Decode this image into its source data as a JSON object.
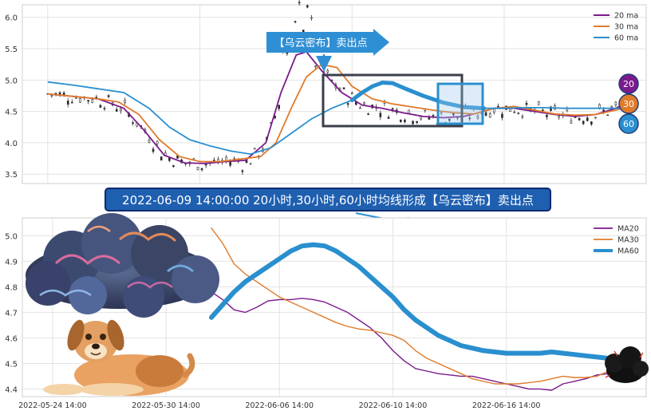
{
  "banner": {
    "text": "2022-06-09 14:00:00 20小时,30小时,60小时均线形成【乌云密布】卖出点",
    "bg_color": "#1f5fb0",
    "border_color": "#0a2a6e"
  },
  "callout": {
    "text": "【乌云密布】卖出点",
    "color": "#2f8fd4"
  },
  "badges": [
    {
      "label": "20",
      "color": "#7b1a8c"
    },
    {
      "label": "30",
      "color": "#e07b2a"
    },
    {
      "label": "60",
      "color": "#2a8fcf"
    }
  ],
  "illustrations": {
    "cloud": "storm-cloud-illustration",
    "dog": "dog-illustration",
    "small_cloud": "dark-cloud-icon"
  },
  "chart_data": [
    {
      "type": "candlestick",
      "legend_position": "top-right",
      "grid": true,
      "ylim": [
        3.35,
        6.2
      ],
      "yticks": [
        "3.5",
        "4.0",
        "4.5",
        "5.0",
        "5.5",
        "6.0"
      ],
      "ytick_values": [
        3.5,
        4.0,
        4.5,
        5.0,
        5.5,
        6.0
      ],
      "series": [
        {
          "name": "20 ma",
          "color": "#7b1a8c",
          "points": [
            [
              0,
              4.78
            ],
            [
              5,
              4.74
            ],
            [
              10,
              4.7
            ],
            [
              15,
              4.55
            ],
            [
              19,
              4.2
            ],
            [
              23,
              3.8
            ],
            [
              27,
              3.68
            ],
            [
              31,
              3.67
            ],
            [
              35,
              3.7
            ],
            [
              39,
              3.72
            ],
            [
              43,
              4.0
            ],
            [
              46,
              4.8
            ],
            [
              49,
              5.4
            ],
            [
              51,
              5.45
            ],
            [
              54,
              5.15
            ],
            [
              58,
              4.8
            ],
            [
              62,
              4.6
            ],
            [
              66,
              4.55
            ],
            [
              70,
              4.48
            ],
            [
              74,
              4.42
            ],
            [
              78,
              4.4
            ],
            [
              82,
              4.42
            ],
            [
              85,
              4.48
            ],
            [
              88,
              4.55
            ],
            [
              92,
              4.55
            ],
            [
              96,
              4.5
            ],
            [
              100,
              4.45
            ],
            [
              104,
              4.42
            ],
            [
              108,
              4.45
            ],
            [
              112,
              4.55
            ],
            [
              115,
              4.68
            ]
          ]
        },
        {
          "name": "30 ma",
          "color": "#e07b2a",
          "points": [
            [
              0,
              4.78
            ],
            [
              5,
              4.74
            ],
            [
              10,
              4.7
            ],
            [
              14,
              4.65
            ],
            [
              18,
              4.45
            ],
            [
              22,
              4.05
            ],
            [
              26,
              3.78
            ],
            [
              30,
              3.7
            ],
            [
              34,
              3.7
            ],
            [
              38,
              3.74
            ],
            [
              42,
              3.78
            ],
            [
              45,
              4.0
            ],
            [
              48,
              4.55
            ],
            [
              51,
              5.05
            ],
            [
              54,
              5.25
            ],
            [
              57,
              5.2
            ],
            [
              60,
              4.9
            ],
            [
              64,
              4.7
            ],
            [
              68,
              4.62
            ],
            [
              72,
              4.57
            ],
            [
              76,
              4.52
            ],
            [
              80,
              4.48
            ],
            [
              84,
              4.46
            ],
            [
              88,
              4.55
            ],
            [
              92,
              4.58
            ],
            [
              96,
              4.52
            ],
            [
              100,
              4.46
            ],
            [
              104,
              4.44
            ],
            [
              108,
              4.45
            ],
            [
              112,
              4.52
            ],
            [
              115,
              4.6
            ]
          ]
        },
        {
          "name": "60 ma",
          "color": "#2a8fcf",
          "points": [
            [
              0,
              4.97
            ],
            [
              5,
              4.92
            ],
            [
              10,
              4.86
            ],
            [
              15,
              4.8
            ],
            [
              20,
              4.55
            ],
            [
              24,
              4.25
            ],
            [
              28,
              4.05
            ],
            [
              32,
              3.95
            ],
            [
              36,
              3.87
            ],
            [
              40,
              3.82
            ],
            [
              44,
              3.92
            ],
            [
              48,
              4.15
            ],
            [
              52,
              4.38
            ],
            [
              56,
              4.55
            ],
            [
              60,
              4.68
            ],
            [
              62,
              4.8
            ],
            [
              64,
              4.9
            ],
            [
              66,
              4.96
            ],
            [
              68,
              4.95
            ],
            [
              70,
              4.88
            ],
            [
              74,
              4.75
            ],
            [
              78,
              4.64
            ],
            [
              82,
              4.57
            ],
            [
              86,
              4.55
            ],
            [
              90,
              4.55
            ],
            [
              94,
              4.56
            ],
            [
              98,
              4.56
            ],
            [
              102,
              4.55
            ],
            [
              106,
              4.55
            ],
            [
              110,
              4.55
            ],
            [
              115,
              4.55
            ]
          ]
        }
      ],
      "badge_labels": [
        "20",
        "30",
        "60"
      ]
    },
    {
      "type": "line",
      "legend_position": "top-right",
      "grid": true,
      "xlim": [
        -50,
        115
      ],
      "ylim": [
        4.37,
        5.07
      ],
      "yticks": [
        "4.4",
        "4.5",
        "4.6",
        "4.7",
        "4.8",
        "4.9",
        "5.0"
      ],
      "ytick_values": [
        4.4,
        4.5,
        4.6,
        4.7,
        4.8,
        4.9,
        5.0
      ],
      "xticks": [
        "2022-05-24 14:00",
        "2022-05-30 14:00",
        "2022-06-06 14:00",
        "2022-06-10 14:00",
        "2022-06-16 14:00"
      ],
      "xtick_positions": [
        -42,
        -12,
        18,
        48,
        78
      ],
      "series": [
        {
          "name": "MA20",
          "color": "#7b1a8c",
          "values": [
            4.78,
            4.75,
            4.71,
            4.7,
            4.72,
            4.745,
            4.75,
            4.75,
            4.755,
            4.75,
            4.74,
            4.72,
            4.7,
            4.67,
            4.64,
            4.6,
            4.55,
            4.51,
            4.48,
            4.47,
            4.46,
            4.455,
            4.45,
            4.45,
            4.44,
            4.43,
            4.42,
            4.41,
            4.4,
            4.4,
            4.395,
            4.42,
            4.43,
            4.44,
            4.455,
            4.46
          ]
        },
        {
          "name": "MA30",
          "color": "#e07b2a",
          "values": [
            5.03,
            4.97,
            4.89,
            4.85,
            4.82,
            4.79,
            4.76,
            4.74,
            4.72,
            4.7,
            4.68,
            4.66,
            4.645,
            4.635,
            4.63,
            4.62,
            4.61,
            4.59,
            4.55,
            4.52,
            4.5,
            4.48,
            4.46,
            4.44,
            4.43,
            4.42,
            4.42,
            4.42,
            4.425,
            4.43,
            4.44,
            4.45,
            4.445,
            4.445,
            4.45,
            4.47
          ]
        },
        {
          "name": "MA60",
          "color": "#2a8fcf",
          "values": [
            4.68,
            4.73,
            4.78,
            4.82,
            4.85,
            4.88,
            4.91,
            4.94,
            4.96,
            4.965,
            4.96,
            4.94,
            4.91,
            4.88,
            4.84,
            4.8,
            4.76,
            4.71,
            4.67,
            4.64,
            4.61,
            4.59,
            4.57,
            4.56,
            4.55,
            4.545,
            4.54,
            4.54,
            4.54,
            4.54,
            4.545,
            4.54,
            4.535,
            4.53,
            4.525,
            4.52
          ]
        }
      ]
    }
  ]
}
